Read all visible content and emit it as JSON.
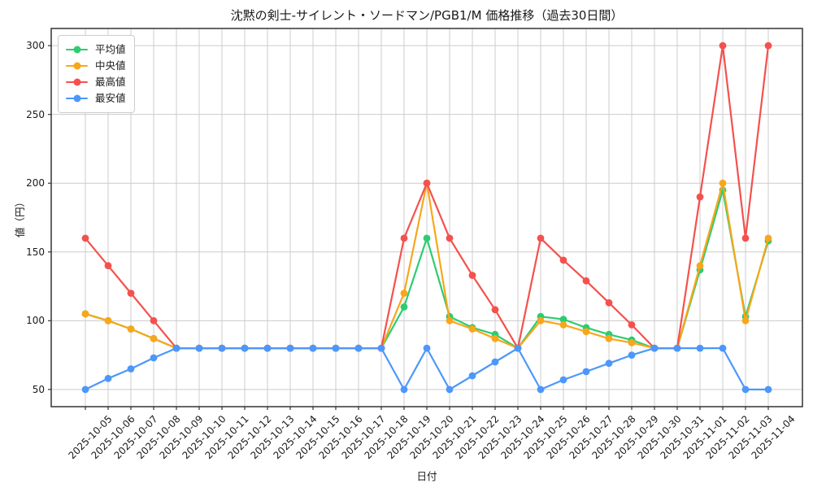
{
  "title": "沈黙の剣士-サイレント・ソードマン/PGB1/M 価格推移（過去30日間）",
  "axes": {
    "x_label": "日付",
    "y_label": "値（円）",
    "y_ticks": [
      50,
      100,
      150,
      200,
      250,
      300
    ]
  },
  "colors": {
    "grid": "#cccccc",
    "spine": "#333333",
    "mean": "#2ECC71",
    "median": "#F9A61B",
    "max": "#F4514E",
    "min": "#4D97FB"
  },
  "chart_data": {
    "type": "line",
    "title": "沈黙の剣士-サイレント・ソードマン/PGB1/M 価格推移（過去30日間）",
    "xlabel": "日付",
    "ylabel": "値（円）",
    "ylim": [
      37.5,
      312.5
    ],
    "grid": true,
    "legend_position": "upper left",
    "categories": [
      "2025-10-05",
      "2025-10-06",
      "2025-10-07",
      "2025-10-08",
      "2025-10-09",
      "2025-10-10",
      "2025-10-11",
      "2025-10-12",
      "2025-10-13",
      "2025-10-14",
      "2025-10-15",
      "2025-10-16",
      "2025-10-17",
      "2025-10-18",
      "2025-10-19",
      "2025-10-20",
      "2025-10-21",
      "2025-10-22",
      "2025-10-23",
      "2025-10-24",
      "2025-10-25",
      "2025-10-26",
      "2025-10-27",
      "2025-10-28",
      "2025-10-29",
      "2025-10-30",
      "2025-10-31",
      "2025-11-01",
      "2025-11-02",
      "2025-11-03",
      "2025-11-04"
    ],
    "series": [
      {
        "key": "mean",
        "name": "平均値",
        "color": "#2ECC71",
        "values": [
          105,
          100,
          94,
          87,
          80,
          80,
          80,
          80,
          80,
          80,
          80,
          80,
          80,
          80,
          110,
          160,
          103,
          95,
          90,
          80,
          103,
          101,
          95,
          90,
          86,
          80,
          80,
          137,
          195,
          103,
          158
        ]
      },
      {
        "key": "median",
        "name": "中央値",
        "color": "#F9A61B",
        "values": [
          105,
          100,
          94,
          87,
          80,
          80,
          80,
          80,
          80,
          80,
          80,
          80,
          80,
          80,
          120,
          200,
          100,
          94,
          87,
          80,
          100,
          97,
          92,
          87,
          84,
          80,
          80,
          140,
          200,
          100,
          160
        ]
      },
      {
        "key": "max",
        "name": "最高値",
        "color": "#F4514E",
        "values": [
          160,
          140,
          120,
          100,
          80,
          80,
          80,
          80,
          80,
          80,
          80,
          80,
          80,
          80,
          160,
          200,
          160,
          133,
          108,
          80,
          160,
          144,
          129,
          113,
          97,
          80,
          80,
          190,
          300,
          160,
          300
        ]
      },
      {
        "key": "min",
        "name": "最安値",
        "color": "#4D97FB",
        "values": [
          50,
          58,
          65,
          73,
          80,
          80,
          80,
          80,
          80,
          80,
          80,
          80,
          80,
          80,
          50,
          80,
          50,
          60,
          70,
          80,
          50,
          57,
          63,
          69,
          75,
          80,
          80,
          80,
          80,
          50,
          50
        ]
      }
    ]
  }
}
